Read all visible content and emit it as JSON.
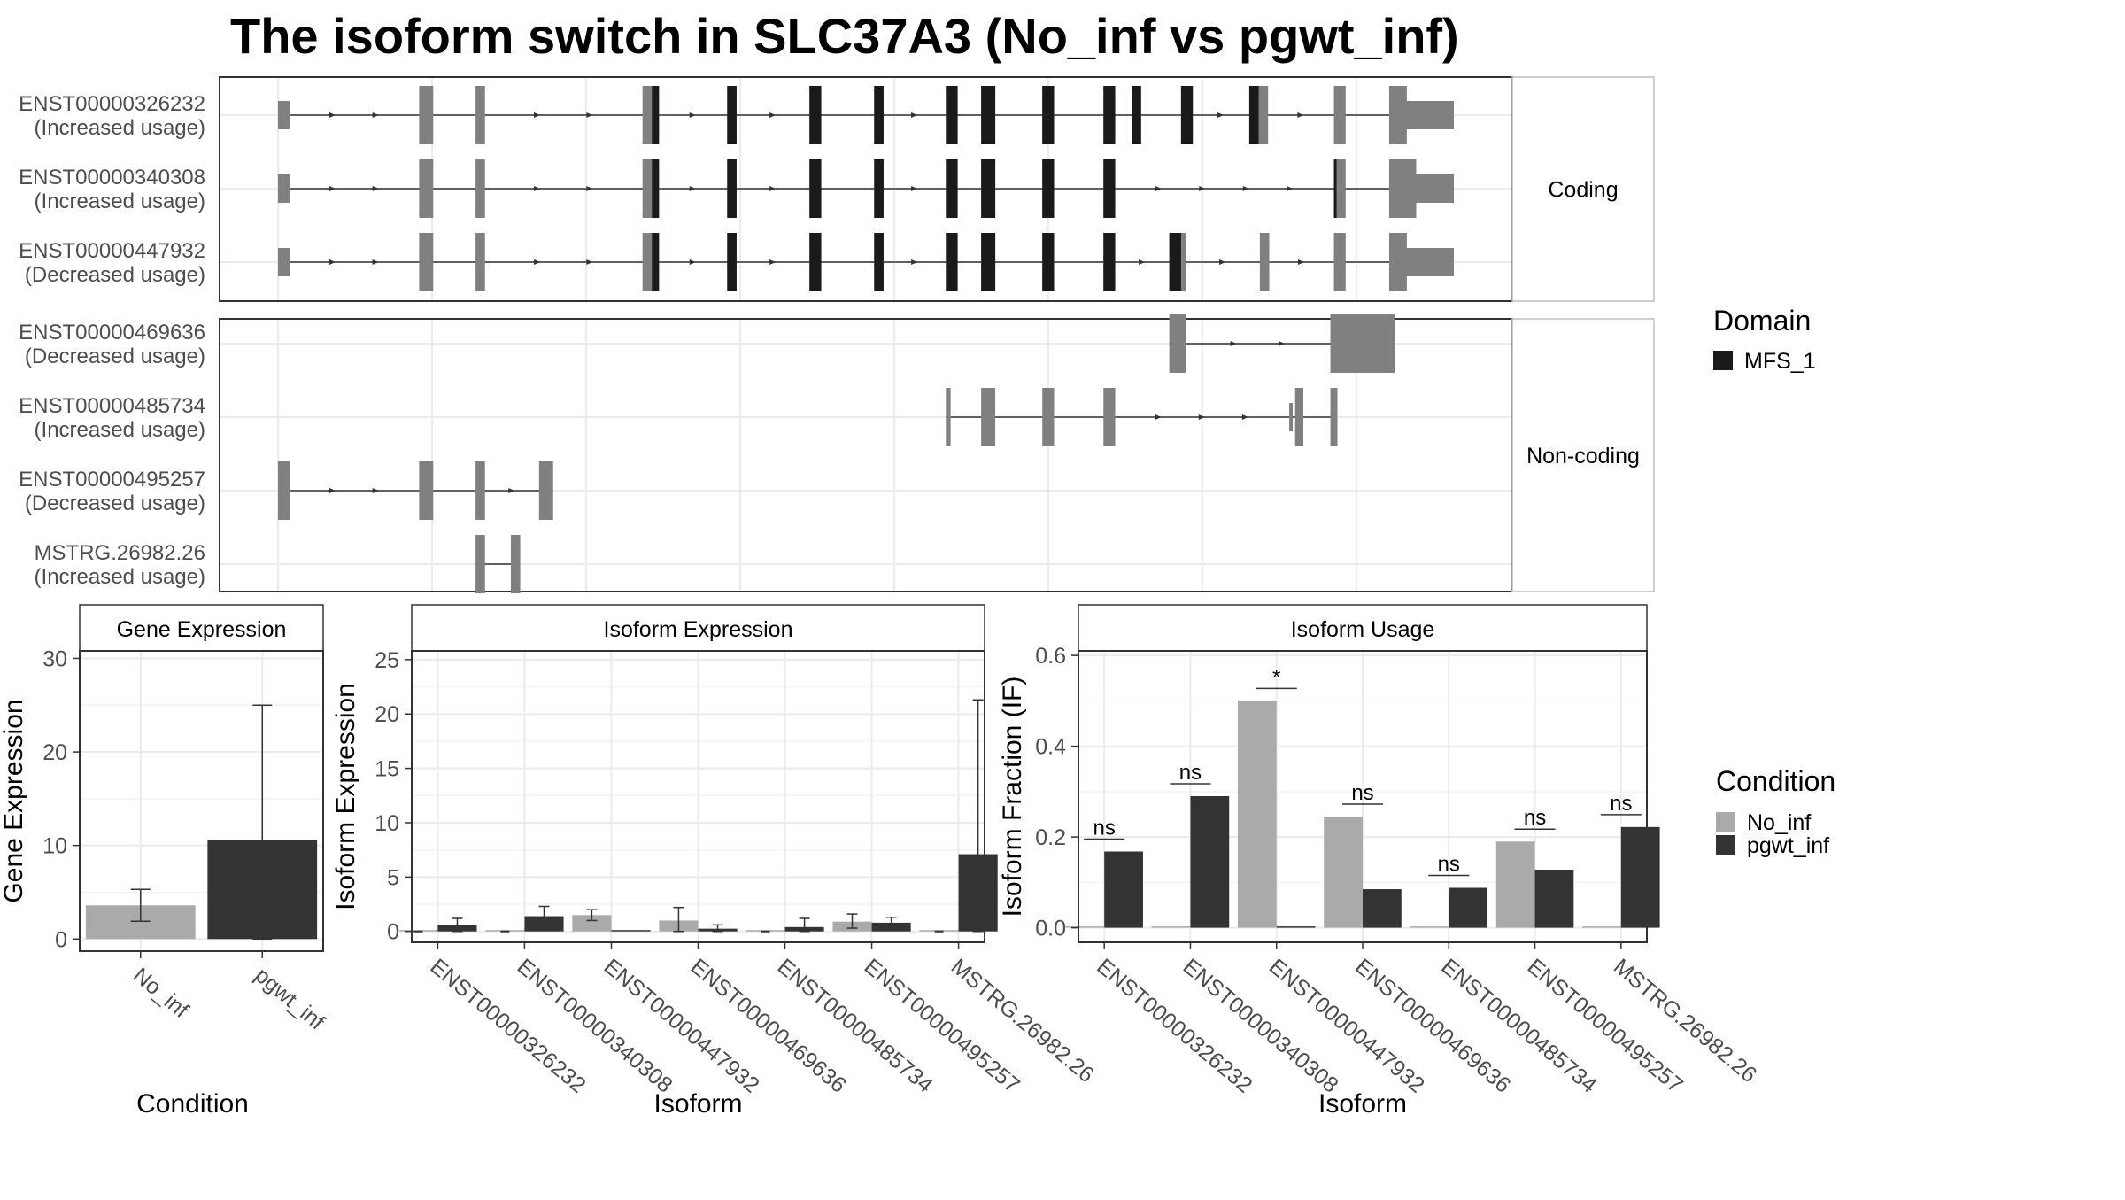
{
  "title": "The isoform switch in SLC37A3 (No_inf vs pgwt_inf)",
  "colors": {
    "no_inf": "#aaaaaa",
    "pgwt_inf": "#333333",
    "domain": "#1a1a1a",
    "exon": "#808080",
    "grid": "#ebebeb",
    "strip_bg": "#ffffff",
    "panel_border": "#333333"
  },
  "structure": {
    "groups": [
      {
        "label": "Coding",
        "n": 3
      },
      {
        "label": "Non-coding",
        "n": 4
      }
    ],
    "domain_legend": {
      "title": "Domain",
      "items": [
        "MFS_1"
      ]
    },
    "genomic_range": [
      0,
      1000
    ],
    "isoforms": [
      {
        "name": "ENST00000326232",
        "usage": "(Increased usage)",
        "group": "Coding",
        "exons": [
          [
            0,
            10,
            "thin"
          ],
          [
            120,
            132,
            "thick"
          ],
          [
            168,
            176,
            "thick"
          ],
          [
            310,
            324,
            "thick"
          ],
          [
            382,
            390,
            "thick"
          ],
          [
            452,
            462,
            "thick"
          ],
          [
            507,
            515,
            "thick"
          ],
          [
            568,
            578,
            "thick"
          ],
          [
            598,
            610,
            "thick"
          ],
          [
            650,
            660,
            "thick"
          ],
          [
            702,
            712,
            "thick"
          ],
          [
            726,
            734,
            "thick"
          ],
          [
            768,
            778,
            "thick"
          ],
          [
            826,
            842,
            "thick"
          ],
          [
            898,
            908,
            "thick"
          ],
          [
            945,
            1000,
            "thin"
          ]
        ],
        "domains": [
          [
            318,
            324
          ],
          [
            382,
            390
          ],
          [
            452,
            462
          ],
          [
            507,
            515
          ],
          [
            568,
            578
          ],
          [
            598,
            610
          ],
          [
            650,
            660
          ],
          [
            702,
            712
          ],
          [
            726,
            734
          ],
          [
            768,
            778
          ],
          [
            826,
            834
          ]
        ],
        "flag": [
          945,
          960
        ]
      },
      {
        "name": "ENST00000340308",
        "usage": "(Increased usage)",
        "group": "Coding",
        "exons": [
          [
            0,
            10,
            "thin"
          ],
          [
            120,
            132,
            "thick"
          ],
          [
            168,
            176,
            "thick"
          ],
          [
            310,
            324,
            "thick"
          ],
          [
            382,
            390,
            "thick"
          ],
          [
            452,
            462,
            "thick"
          ],
          [
            507,
            515,
            "thick"
          ],
          [
            568,
            578,
            "thick"
          ],
          [
            598,
            610,
            "thick"
          ],
          [
            650,
            660,
            "thick"
          ],
          [
            702,
            712,
            "thick"
          ],
          [
            898,
            908,
            "thick"
          ],
          [
            945,
            1000,
            "thin"
          ]
        ],
        "domains": [
          [
            318,
            324
          ],
          [
            382,
            390
          ],
          [
            452,
            462
          ],
          [
            507,
            515
          ],
          [
            568,
            578
          ],
          [
            598,
            610
          ],
          [
            650,
            660
          ],
          [
            702,
            712
          ],
          [
            898,
            900
          ]
        ],
        "flag": [
          945,
          968
        ]
      },
      {
        "name": "ENST00000447932",
        "usage": "(Decreased usage)",
        "group": "Coding",
        "exons": [
          [
            0,
            10,
            "thin"
          ],
          [
            120,
            132,
            "thick"
          ],
          [
            168,
            176,
            "thick"
          ],
          [
            310,
            324,
            "thick"
          ],
          [
            382,
            390,
            "thick"
          ],
          [
            452,
            462,
            "thick"
          ],
          [
            507,
            515,
            "thick"
          ],
          [
            568,
            578,
            "thick"
          ],
          [
            598,
            610,
            "thick"
          ],
          [
            650,
            660,
            "thick"
          ],
          [
            702,
            712,
            "thick"
          ],
          [
            758,
            772,
            "thick"
          ],
          [
            835,
            843,
            "thick"
          ],
          [
            898,
            908,
            "thick"
          ],
          [
            945,
            1000,
            "thin"
          ]
        ],
        "domains": [
          [
            318,
            324
          ],
          [
            382,
            390
          ],
          [
            452,
            462
          ],
          [
            507,
            515
          ],
          [
            568,
            578
          ],
          [
            598,
            610
          ],
          [
            650,
            660
          ],
          [
            702,
            712
          ],
          [
            758,
            768
          ]
        ],
        "flag": [
          945,
          960
        ]
      },
      {
        "name": "ENST00000469636",
        "usage": "(Decreased usage)",
        "group": "Non-coding",
        "exons": [
          [
            758,
            772,
            "thick"
          ],
          [
            895,
            950,
            "thick"
          ]
        ],
        "domains": []
      },
      {
        "name": "ENST00000485734",
        "usage": "(Increased usage)",
        "group": "Non-coding",
        "exons": [
          [
            568,
            572,
            "thick"
          ],
          [
            598,
            610,
            "thick"
          ],
          [
            650,
            660,
            "thick"
          ],
          [
            702,
            712,
            "thick"
          ],
          [
            860,
            863,
            "thin"
          ],
          [
            865,
            872,
            "thick"
          ],
          [
            895,
            901,
            "thick"
          ]
        ],
        "domains": []
      },
      {
        "name": "ENST00000495257",
        "usage": "(Decreased usage)",
        "group": "Non-coding",
        "exons": [
          [
            0,
            10,
            "thick"
          ],
          [
            120,
            132,
            "thick"
          ],
          [
            168,
            176,
            "thick"
          ],
          [
            222,
            234,
            "thick"
          ]
        ],
        "domains": []
      },
      {
        "name": "MSTRG.26982.26",
        "usage": "(Increased usage)",
        "group": "Non-coding",
        "exons": [
          [
            168,
            176,
            "thick"
          ],
          [
            198,
            206,
            "thick"
          ]
        ],
        "domains": []
      }
    ]
  },
  "chart_data": [
    {
      "type": "bar",
      "title": "Gene Expression",
      "xlabel": "Condition",
      "ylabel": "Gene Expression",
      "categories": [
        "No_inf",
        "pgwt_inf"
      ],
      "values": [
        3.6,
        10.6
      ],
      "error_low": [
        1.9,
        0.0
      ],
      "error_high": [
        5.3,
        25.0
      ],
      "ylim": [
        -1.3,
        30.8
      ],
      "yticks": [
        0,
        10,
        20,
        30
      ]
    },
    {
      "type": "bar",
      "title": "Isoform Expression",
      "xlabel": "Isoform",
      "ylabel": "Isoform Expression",
      "categories": [
        "ENST00000326232",
        "ENST00000340308",
        "ENST00000447932",
        "ENST00000469636",
        "ENST00000485734",
        "ENST00000495257",
        "MSTRG.26982.26"
      ],
      "series": [
        {
          "name": "No_inf",
          "values": [
            0.0,
            0.0,
            1.5,
            1.0,
            0.0,
            0.9,
            0.0
          ],
          "err_low": [
            0.0,
            0.0,
            1.0,
            0.0,
            0.0,
            0.3,
            0.0
          ],
          "err_high": [
            0.0,
            0.0,
            2.0,
            2.2,
            0.0,
            1.6,
            0.0
          ]
        },
        {
          "name": "pgwt_inf",
          "values": [
            0.6,
            1.4,
            0.0,
            0.25,
            0.4,
            0.8,
            7.1
          ],
          "err_low": [
            0.0,
            0.5,
            0.0,
            0.0,
            0.0,
            0.2,
            0.0
          ],
          "err_high": [
            1.2,
            2.3,
            0.0,
            0.6,
            1.2,
            1.3,
            21.3
          ]
        }
      ],
      "ylim": [
        -1.0,
        25.8
      ],
      "yticks": [
        0,
        5,
        10,
        15,
        20,
        25
      ]
    },
    {
      "type": "bar",
      "title": "Isoform Usage",
      "xlabel": "Isoform",
      "ylabel": "Isoform Fraction (IF)",
      "categories": [
        "ENST00000326232",
        "ENST00000340308",
        "ENST00000447932",
        "ENST00000469636",
        "ENST00000485734",
        "ENST00000495257",
        "MSTRG.26982.26"
      ],
      "series": [
        {
          "name": "No_inf",
          "values": [
            0.0,
            0.0,
            0.5,
            0.245,
            0.0,
            0.19,
            0.0
          ]
        },
        {
          "name": "pgwt_inf",
          "values": [
            0.168,
            0.29,
            0.0,
            0.085,
            0.088,
            0.128,
            0.222
          ]
        }
      ],
      "significance": [
        "ns",
        "ns",
        "*",
        "ns",
        "ns",
        "ns",
        "ns"
      ],
      "ylim": [
        -0.032,
        0.61
      ],
      "yticks": [
        0.0,
        0.2,
        0.4,
        0.6
      ],
      "ytick_labels": [
        "0.0",
        "0.2",
        "0.4",
        "0.6"
      ]
    }
  ],
  "condition_legend": {
    "title": "Condition",
    "items": [
      "No_inf",
      "pgwt_inf"
    ]
  }
}
